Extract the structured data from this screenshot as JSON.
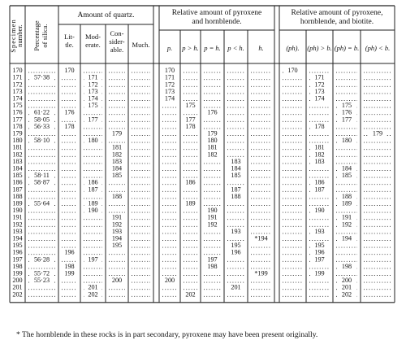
{
  "rows": [
    170,
    171,
    172,
    173,
    174,
    175,
    176,
    177,
    178,
    179,
    180,
    181,
    182,
    183,
    184,
    185,
    186,
    187,
    188,
    189,
    190,
    191,
    192,
    193,
    194,
    195,
    196,
    197,
    198,
    199,
    200,
    201,
    202
  ],
  "headers": {
    "specimen": [
      "Specimen",
      "number."
    ],
    "silica": [
      "Percentage",
      "of silica."
    ],
    "quartz_group": "Amount of quartz.",
    "quartz_cols": [
      [
        "Lit-",
        "tle."
      ],
      [
        "Mod-",
        "erate."
      ],
      [
        "Con-",
        "sider-",
        "able."
      ],
      [
        "Much."
      ]
    ],
    "pyx_group": [
      "Relative amount of pyroxene",
      "and hornblende."
    ],
    "pyx_cols": [
      "p.",
      "p > h.",
      "p = h.",
      "p < h.",
      "h."
    ],
    "bio_group": [
      "Relative amount of pyroxene,",
      "hornblende, and biotite."
    ],
    "bio_cols": [
      "(ph).",
      "(ph) > b.",
      "(ph) = b.",
      "(ph) < b."
    ]
  },
  "silica": {
    "171": "57·38",
    "176": "61·22",
    "177": "58·05",
    "178": "56·33",
    "180": "58·10",
    "185": "58·11",
    "186": "58·87",
    "189": "55·64",
    "197": "56·28",
    "199": "55·72",
    "200": "55·23"
  },
  "quartz": {
    "little": [
      170,
      176,
      178,
      196,
      198,
      199
    ],
    "moderate": [
      171,
      172,
      173,
      174,
      175,
      177,
      180,
      186,
      187,
      189,
      190,
      197,
      201,
      202
    ],
    "considerable": [
      179,
      181,
      182,
      183,
      184,
      185,
      188,
      191,
      192,
      193,
      194,
      195,
      200
    ],
    "much": []
  },
  "pyroxene_hornblende": {
    "p": [
      170,
      171,
      172,
      173,
      174,
      200
    ],
    "p_gt_h": [
      175,
      177,
      178,
      186,
      189,
      202
    ],
    "p_eq_h": [
      176,
      179,
      180,
      181,
      182,
      190,
      191,
      192,
      197,
      198
    ],
    "p_lt_h": [
      183,
      184,
      185,
      187,
      188,
      193,
      195,
      196,
      201
    ],
    "h": [
      "194",
      "199"
    ]
  },
  "pyroxene_hornblende_biotite": {
    "ph": [
      170
    ],
    "ph_gt_b": [
      171,
      172,
      173,
      174,
      178,
      181,
      182,
      183,
      186,
      187,
      190,
      193,
      195,
      196,
      197,
      199
    ],
    "ph_eq_b": [
      175,
      176,
      177,
      180,
      184,
      185,
      188,
      189,
      191,
      192,
      194,
      198,
      200,
      201,
      202
    ],
    "ph_lt_b": [
      179
    ]
  },
  "asterisk_marks": [
    "194",
    "199"
  ],
  "footnote": "* The hornblende in these rocks is in part secondary, pyroxene may have been present originally."
}
